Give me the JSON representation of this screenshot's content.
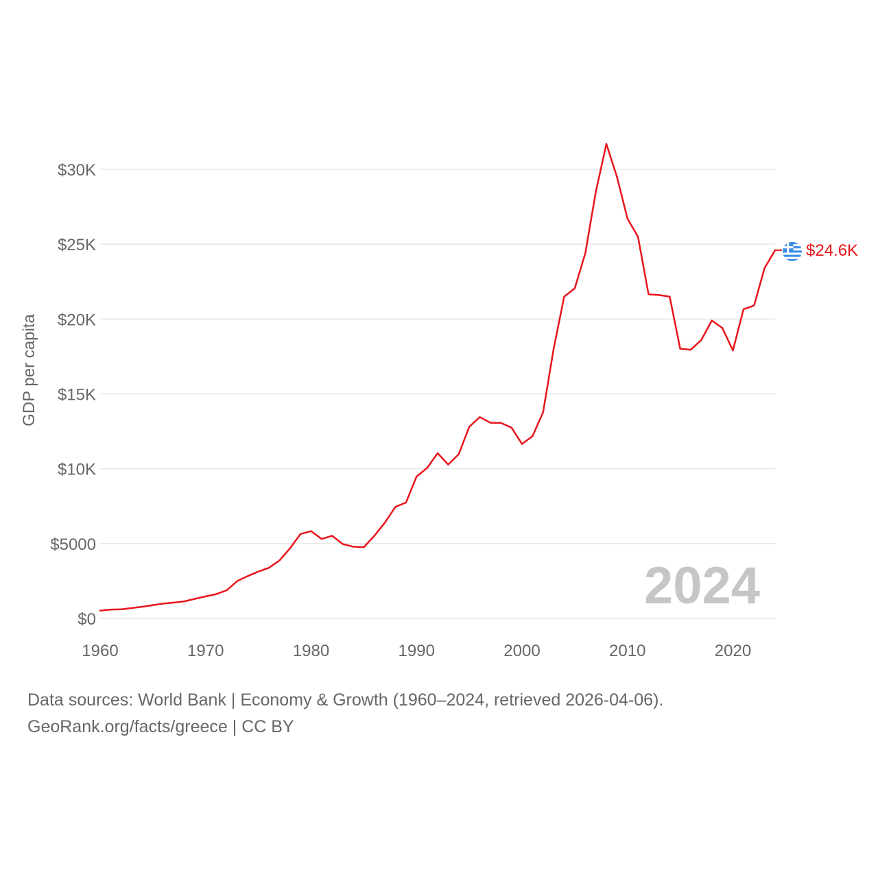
{
  "chart_data": {
    "type": "line",
    "title": "",
    "xlabel": "",
    "ylabel": "GDP per capita",
    "xlim": [
      1960,
      2024
    ],
    "ylim": [
      0,
      32000
    ],
    "x_ticks": [
      1960,
      1970,
      1980,
      1990,
      2000,
      2010,
      2020
    ],
    "x_tick_labels": [
      "1960",
      "1970",
      "1980",
      "1990",
      "2000",
      "2010",
      "2020"
    ],
    "y_ticks": [
      0,
      5000,
      10000,
      15000,
      20000,
      25000,
      30000
    ],
    "y_tick_labels": [
      "$0",
      "$5000",
      "$10K",
      "$15K",
      "$20K",
      "$25K",
      "$30K"
    ],
    "grid": true,
    "year_watermark": "2024",
    "series": [
      {
        "name": "Greece",
        "color": "#e8151b",
        "end_label": "$24.6K",
        "flag_icon": "greece-flag-icon",
        "x": [
          1960,
          1961,
          1962,
          1963,
          1964,
          1965,
          1966,
          1967,
          1968,
          1969,
          1970,
          1971,
          1972,
          1973,
          1974,
          1975,
          1976,
          1977,
          1978,
          1979,
          1980,
          1981,
          1982,
          1983,
          1984,
          1985,
          1986,
          1987,
          1988,
          1989,
          1990,
          1991,
          1992,
          1993,
          1994,
          1995,
          1996,
          1997,
          1998,
          1999,
          2000,
          2001,
          2002,
          2003,
          2004,
          2005,
          2006,
          2007,
          2008,
          2009,
          2010,
          2011,
          2012,
          2013,
          2014,
          2015,
          2016,
          2017,
          2018,
          2019,
          2020,
          2021,
          2022,
          2023,
          2024
        ],
        "values": [
          520,
          590,
          610,
          690,
          780,
          890,
          990,
          1060,
          1140,
          1310,
          1470,
          1620,
          1880,
          2500,
          2830,
          3130,
          3380,
          3870,
          4680,
          5640,
          5830,
          5310,
          5520,
          4970,
          4790,
          4760,
          5520,
          6400,
          7450,
          7740,
          9480,
          10050,
          11040,
          10280,
          10970,
          12800,
          13450,
          13070,
          13060,
          12750,
          11650,
          12180,
          13780,
          18000,
          21500,
          22050,
          24400,
          28500,
          31700,
          29500,
          26700,
          25500,
          21650,
          21600,
          21500,
          18020,
          17950,
          18600,
          19900,
          19400,
          17900,
          20650,
          20900,
          23400,
          24600
        ]
      }
    ]
  },
  "footer": {
    "line1": "Data sources: World Bank | Economy & Growth (1960–2024, retrieved 2026-04-06).",
    "line2": "GeoRank.org/facts/greece | CC BY"
  }
}
